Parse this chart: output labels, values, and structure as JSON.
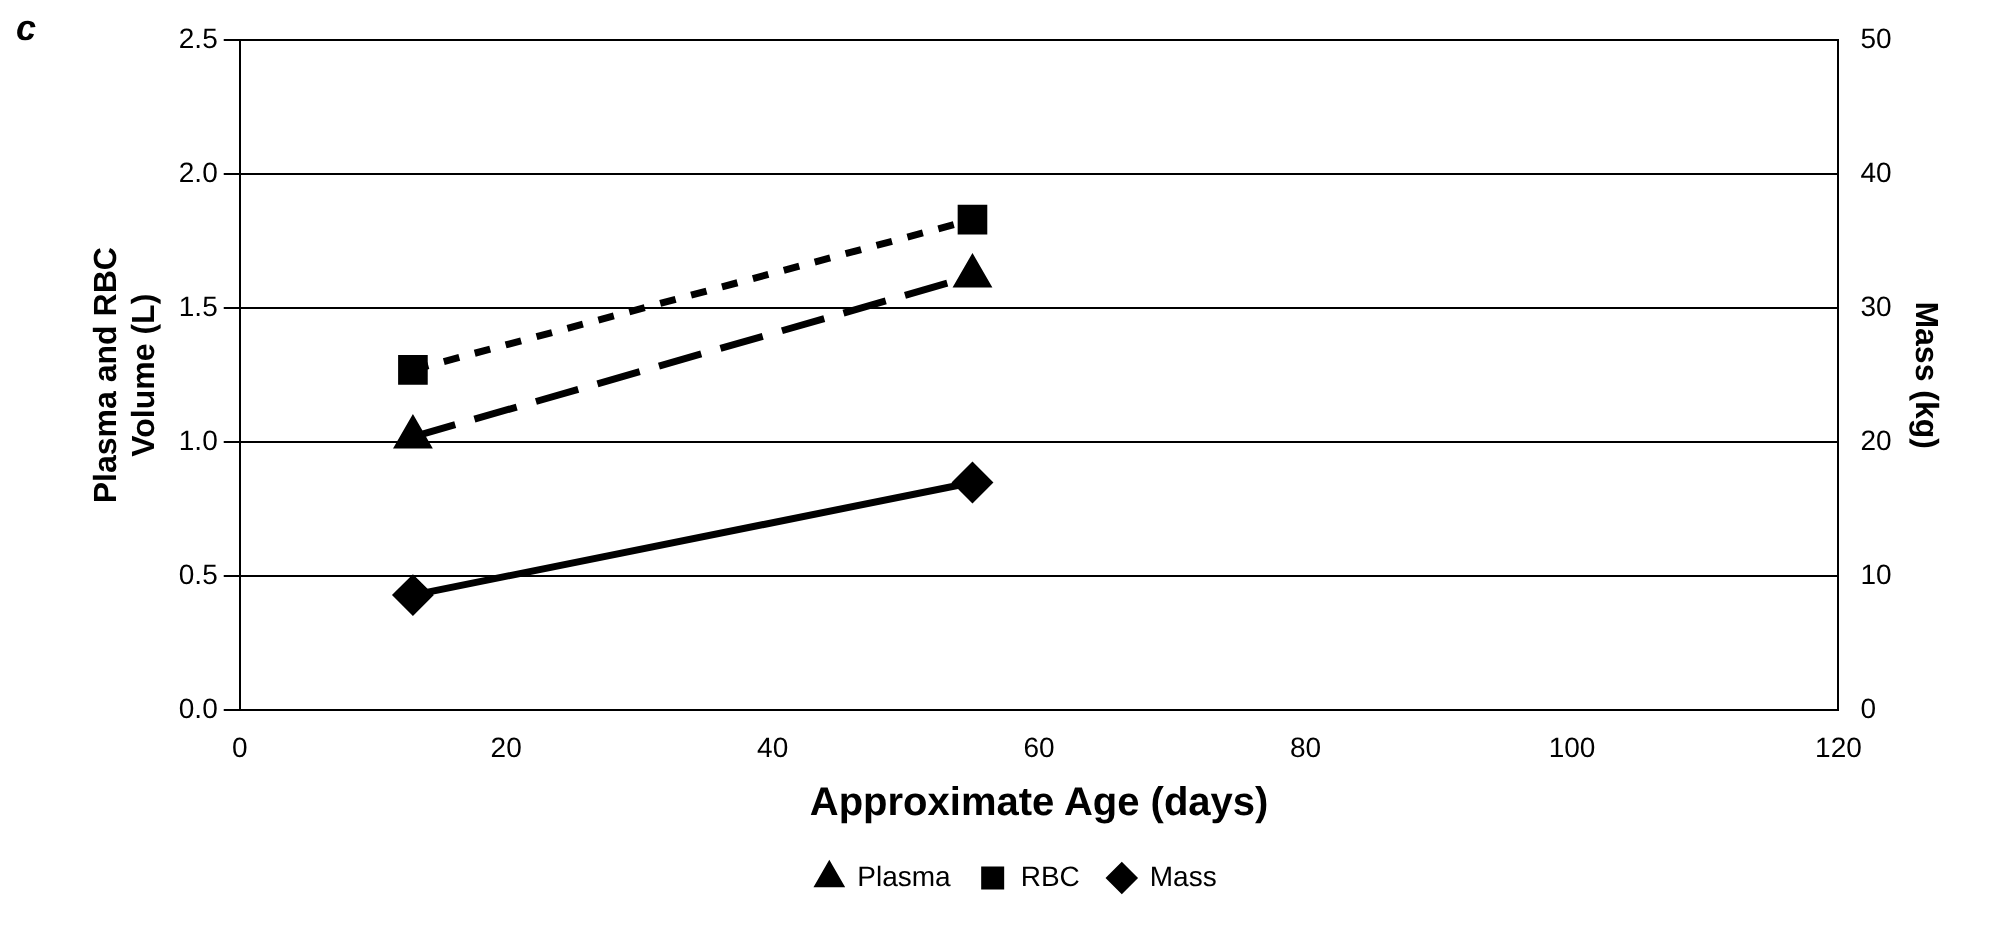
{
  "chart_data": {
    "type": "line",
    "annotations": [
      "c"
    ],
    "xlabel": "Approximate Age (days)",
    "ylabel": "Plasma and RBC Volume (L)",
    "y2label": "Mass (kg)",
    "x": [
      13,
      55
    ],
    "series": [
      {
        "name": "Plasma",
        "color": "#000000",
        "values": [
          1.02,
          1.62
        ],
        "marker": "triangle",
        "line_style": "dashed"
      },
      {
        "name": "RBC",
        "color": "#000000",
        "values": [
          1.27,
          1.83
        ],
        "marker": "square",
        "line_style": "dotted"
      },
      {
        "name": "Mass",
        "color": "#000000",
        "values": [
          8.6,
          17
        ],
        "marker": "diamond",
        "line_style": "solid",
        "axis": "y2"
      }
    ],
    "xlim": [
      0,
      120
    ],
    "xticks": [
      0,
      20,
      40,
      60,
      80,
      100,
      120
    ],
    "ylim": [
      0,
      2.5
    ],
    "yticks": [
      {
        "value": 0,
        "label": "0.0"
      },
      {
        "value": 0.5,
        "label": "0.5"
      },
      {
        "value": 1,
        "label": "1.0"
      },
      {
        "value": 1.5,
        "label": "1.5"
      },
      {
        "value": 2,
        "label": "2.0"
      },
      {
        "value": 2.5,
        "label": "2.5"
      }
    ],
    "y2lim": [
      0,
      50
    ],
    "y2ticks": [
      0,
      10,
      20,
      30,
      40,
      50
    ],
    "grid": "y",
    "legend": "bottom"
  }
}
